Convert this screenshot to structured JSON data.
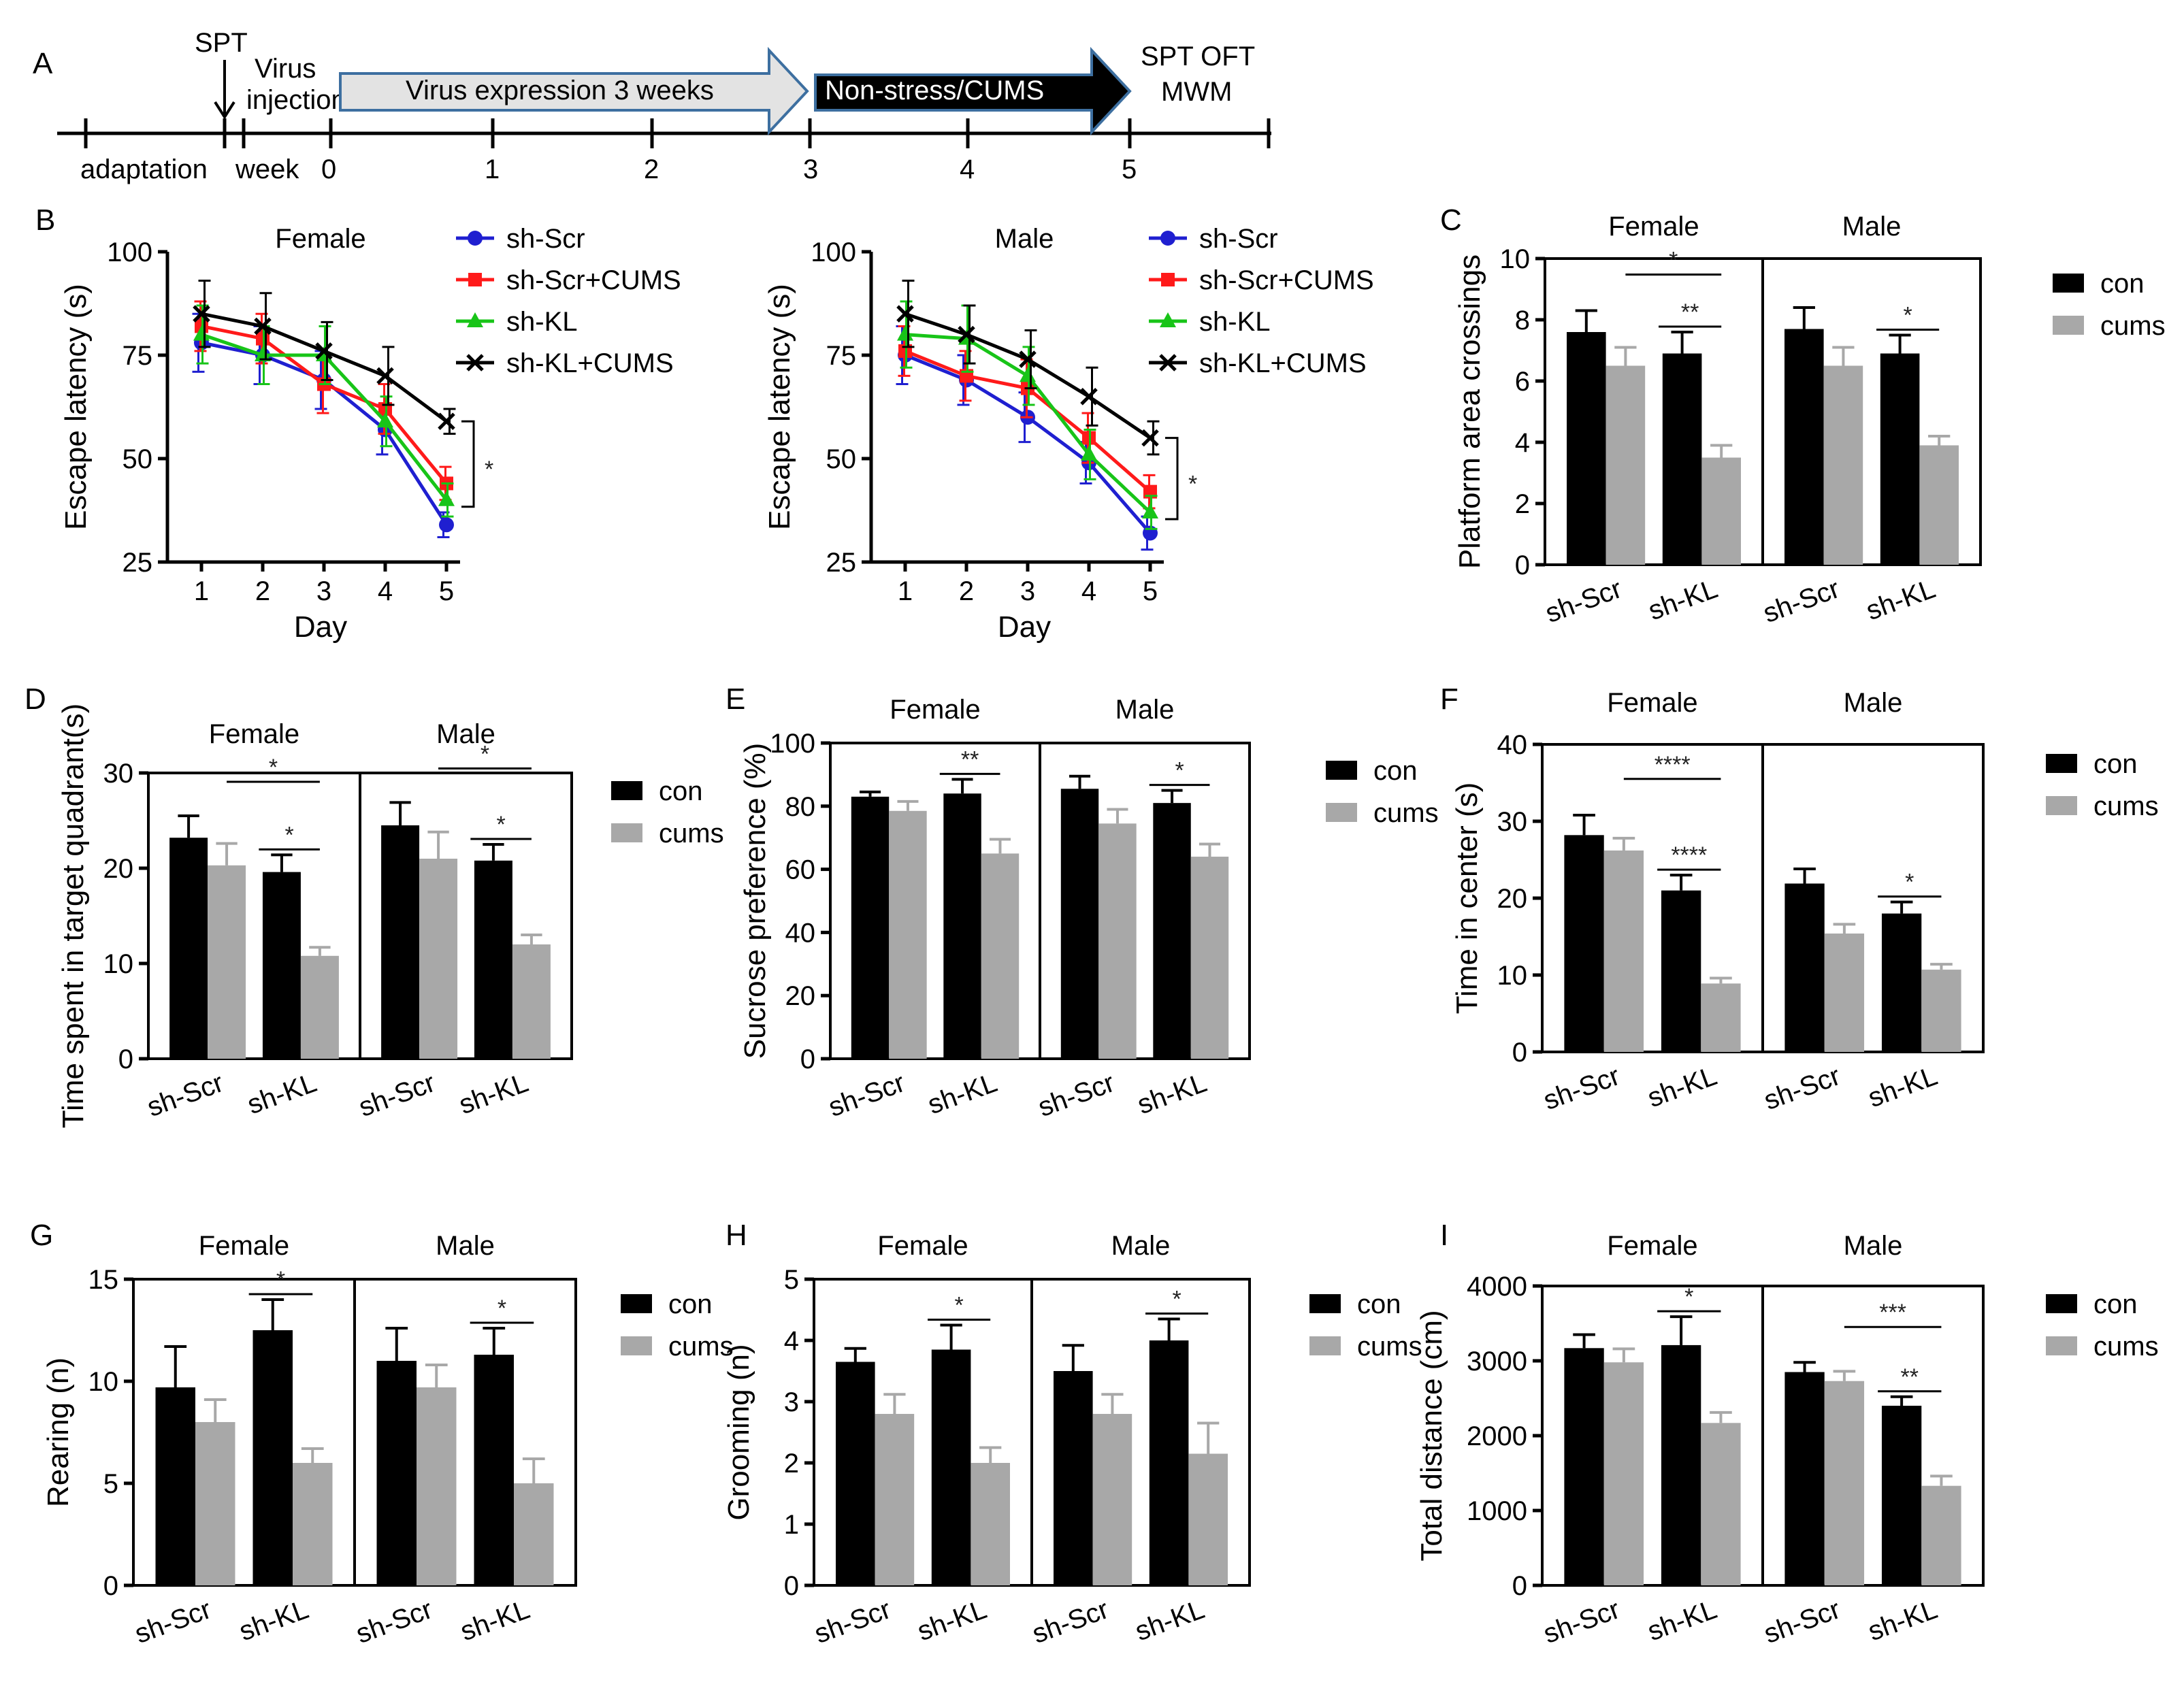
{
  "timeline": {
    "letter": "A",
    "spt_label": "SPT",
    "virus_injection_label": [
      "Virus",
      "injection"
    ],
    "adaptation_label": "adaptation",
    "week_label": "week",
    "ticks": [
      "0",
      "1",
      "2",
      "3",
      "4",
      "5"
    ],
    "arrow1_label": "Virus expression  3 weeks",
    "arrow2_label": "Non-stress/CUMS",
    "end_label": [
      "SPT OFT",
      "MWM"
    ]
  },
  "colors": {
    "sh_scr": "#1f1fd0",
    "sh_scr_cums": "#ff1a1a",
    "sh_kl": "#18c418",
    "sh_kl_cums": "#000000",
    "con": "#000000",
    "cums": "#a8a8a8"
  },
  "chart_data": [
    {
      "id": "B_female",
      "letter": "B",
      "type": "line",
      "title": "Female",
      "xlabel": "Day",
      "ylabel": "Escape latency (s)",
      "x": [
        1,
        2,
        3,
        4,
        5
      ],
      "x_ticks": [
        "1",
        "2",
        "3",
        "4",
        "5"
      ],
      "ylim": [
        25,
        100
      ],
      "y_ticks": [
        "25",
        "50",
        "75",
        "100"
      ],
      "series": [
        {
          "name": "sh-Scr",
          "values": [
            78,
            75,
            69,
            57,
            34
          ],
          "err": [
            7,
            7,
            7,
            6,
            3
          ]
        },
        {
          "name": "sh-Scr+CUMS",
          "values": [
            82,
            79,
            68,
            62,
            44
          ],
          "err": [
            6,
            6,
            7,
            6,
            4
          ]
        },
        {
          "name": "sh-KL",
          "values": [
            80,
            75,
            75,
            59,
            40
          ],
          "err": [
            7,
            7,
            7,
            6,
            4
          ]
        },
        {
          "name": "sh-KL+CUMS",
          "values": [
            85,
            82,
            76,
            70,
            59
          ],
          "err": [
            8,
            8,
            7,
            7,
            3
          ]
        }
      ],
      "annotation": "*"
    },
    {
      "id": "B_male",
      "type": "line",
      "title": "Male",
      "xlabel": "Day",
      "ylabel": "Escape latency (s)",
      "x": [
        1,
        2,
        3,
        4,
        5
      ],
      "x_ticks": [
        "1",
        "2",
        "3",
        "4",
        "5"
      ],
      "ylim": [
        25,
        100
      ],
      "y_ticks": [
        "25",
        "50",
        "75",
        "100"
      ],
      "series": [
        {
          "name": "sh-Scr",
          "values": [
            75,
            69,
            60,
            49,
            32
          ],
          "err": [
            7,
            6,
            6,
            5,
            4
          ]
        },
        {
          "name": "sh-Scr+CUMS",
          "values": [
            76,
            70,
            67,
            55,
            42
          ],
          "err": [
            6,
            6,
            7,
            6,
            4
          ]
        },
        {
          "name": "sh-KL",
          "values": [
            80,
            79,
            70,
            51,
            37
          ],
          "err": [
            8,
            8,
            7,
            6,
            4
          ]
        },
        {
          "name": "sh-KL+CUMS",
          "values": [
            85,
            80,
            74,
            65,
            55
          ],
          "err": [
            8,
            7,
            7,
            7,
            4
          ]
        }
      ],
      "annotation": "*"
    },
    {
      "id": "C",
      "letter": "C",
      "type": "bar",
      "ylabel": "Platform area crossings",
      "ylim": [
        0,
        10
      ],
      "y_ticks": [
        "0",
        "2",
        "4",
        "6",
        "8",
        "10"
      ],
      "groups": [
        "Female",
        "Male"
      ],
      "categories": [
        "sh-Scr",
        "sh-KL",
        "sh-Scr",
        "sh-KL"
      ],
      "series": [
        {
          "name": "con",
          "values": [
            7.6,
            6.9,
            7.7,
            6.9
          ],
          "err": [
            0.7,
            0.7,
            0.7,
            0.6
          ]
        },
        {
          "name": "cums",
          "values": [
            6.5,
            3.5,
            6.5,
            3.9
          ],
          "err": [
            0.6,
            0.4,
            0.6,
            0.3
          ]
        }
      ],
      "sig": [
        {
          "from": [
            0,
            1
          ],
          "to": [
            1,
            1
          ],
          "label": "*",
          "level": 1
        },
        {
          "from": [
            1,
            0
          ],
          "to": [
            1,
            1
          ],
          "label": "**",
          "level": 0
        },
        {
          "from": [
            3,
            0
          ],
          "to": [
            3,
            1
          ],
          "label": "*",
          "level": 0
        }
      ]
    },
    {
      "id": "D",
      "letter": "D",
      "type": "bar",
      "ylabel": "Time spent in target quadrant(s)",
      "ylim": [
        0,
        30
      ],
      "y_ticks": [
        "0",
        "10",
        "20",
        "30"
      ],
      "groups": [
        "Female",
        "Male"
      ],
      "categories": [
        "sh-Scr",
        "sh-KL",
        "sh-Scr",
        "sh-KL"
      ],
      "series": [
        {
          "name": "con",
          "values": [
            23.2,
            19.6,
            24.5,
            20.8
          ],
          "err": [
            2.3,
            1.8,
            2.4,
            1.7
          ]
        },
        {
          "name": "cums",
          "values": [
            20.3,
            10.8,
            21.0,
            12.0
          ],
          "err": [
            2.3,
            0.9,
            2.8,
            1.0
          ]
        }
      ],
      "sig": [
        {
          "from": [
            0,
            1
          ],
          "to": [
            1,
            1
          ],
          "label": "*",
          "level": 1
        },
        {
          "from": [
            1,
            0
          ],
          "to": [
            1,
            1
          ],
          "label": "*",
          "level": 0
        },
        {
          "from": [
            2,
            1
          ],
          "to": [
            3,
            1
          ],
          "label": "*",
          "level": 1
        },
        {
          "from": [
            3,
            0
          ],
          "to": [
            3,
            1
          ],
          "label": "*",
          "level": 0
        }
      ]
    },
    {
      "id": "E",
      "letter": "E",
      "type": "bar",
      "ylabel": "Sucrose preference (%)",
      "ylim": [
        0,
        100
      ],
      "y_ticks": [
        "0",
        "20",
        "40",
        "60",
        "80",
        "100"
      ],
      "groups": [
        "Female",
        "Male"
      ],
      "categories": [
        "sh-Scr",
        "sh-KL",
        "sh-Scr",
        "sh-KL"
      ],
      "series": [
        {
          "name": "con",
          "values": [
            83,
            84,
            85.5,
            81
          ],
          "err": [
            1.5,
            4.5,
            4,
            4
          ]
        },
        {
          "name": "cums",
          "values": [
            78.5,
            65,
            74.5,
            64
          ],
          "err": [
            3,
            4.5,
            4.5,
            4
          ]
        }
      ],
      "sig": [
        {
          "from": [
            1,
            0
          ],
          "to": [
            1,
            1
          ],
          "label": "**",
          "level": 0
        },
        {
          "from": [
            3,
            0
          ],
          "to": [
            3,
            1
          ],
          "label": "*",
          "level": 0
        }
      ]
    },
    {
      "id": "F",
      "letter": "F",
      "type": "bar",
      "ylabel": "Time in center (s)",
      "ylim": [
        0,
        40
      ],
      "y_ticks": [
        "0",
        "10",
        "20",
        "30",
        "40"
      ],
      "groups": [
        "Female",
        "Male"
      ],
      "categories": [
        "sh-Scr",
        "sh-KL",
        "sh-Scr",
        "sh-KL"
      ],
      "series": [
        {
          "name": "con",
          "values": [
            28.2,
            21.0,
            21.9,
            18.0
          ],
          "err": [
            2.6,
            2.0,
            1.9,
            1.5
          ]
        },
        {
          "name": "cums",
          "values": [
            26.2,
            8.9,
            15.4,
            10.7
          ],
          "err": [
            1.6,
            0.7,
            1.2,
            0.7
          ]
        }
      ],
      "sig": [
        {
          "from": [
            0,
            1
          ],
          "to": [
            1,
            1
          ],
          "label": "****",
          "level": 1
        },
        {
          "from": [
            1,
            0
          ],
          "to": [
            1,
            1
          ],
          "label": "****",
          "level": 0
        },
        {
          "from": [
            3,
            0
          ],
          "to": [
            3,
            1
          ],
          "label": "*",
          "level": 0
        }
      ]
    },
    {
      "id": "G",
      "letter": "G",
      "type": "bar",
      "ylabel": "Rearing (n)",
      "ylim": [
        0,
        15
      ],
      "y_ticks": [
        "0",
        "5",
        "10",
        "15"
      ],
      "groups": [
        "Female",
        "Male"
      ],
      "categories": [
        "sh-Scr",
        "sh-KL",
        "sh-Scr",
        "sh-KL"
      ],
      "series": [
        {
          "name": "con",
          "values": [
            9.7,
            12.5,
            11.0,
            11.3
          ],
          "err": [
            2.0,
            1.5,
            1.6,
            1.3
          ]
        },
        {
          "name": "cums",
          "values": [
            8.0,
            6.0,
            9.7,
            5.0
          ],
          "err": [
            1.1,
            0.7,
            1.1,
            1.2
          ]
        }
      ],
      "sig": [
        {
          "from": [
            1,
            0
          ],
          "to": [
            1,
            1
          ],
          "label": "*",
          "level": 0
        },
        {
          "from": [
            3,
            0
          ],
          "to": [
            3,
            1
          ],
          "label": "*",
          "level": 0
        }
      ]
    },
    {
      "id": "H",
      "letter": "H",
      "type": "bar",
      "ylabel": "Grooming (n)",
      "ylim": [
        0,
        5
      ],
      "y_ticks": [
        "0",
        "1",
        "2",
        "3",
        "4",
        "5"
      ],
      "groups": [
        "Female",
        "Male"
      ],
      "categories": [
        "sh-Scr",
        "sh-KL",
        "sh-Scr",
        "sh-KL"
      ],
      "series": [
        {
          "name": "con",
          "values": [
            3.65,
            3.85,
            3.5,
            4.0
          ],
          "err": [
            0.22,
            0.4,
            0.42,
            0.35
          ]
        },
        {
          "name": "cums",
          "values": [
            2.8,
            2.0,
            2.8,
            2.15
          ],
          "err": [
            0.32,
            0.25,
            0.32,
            0.5
          ]
        }
      ],
      "sig": [
        {
          "from": [
            1,
            0
          ],
          "to": [
            1,
            1
          ],
          "label": "*",
          "level": 0
        },
        {
          "from": [
            3,
            0
          ],
          "to": [
            3,
            1
          ],
          "label": "*",
          "level": 0
        }
      ]
    },
    {
      "id": "I",
      "letter": "I",
      "type": "bar",
      "ylabel": "Total distance (cm)",
      "ylim": [
        0,
        4000
      ],
      "y_ticks": [
        "0",
        "1000",
        "2000",
        "3000",
        "4000"
      ],
      "groups": [
        "Female",
        "Male"
      ],
      "categories": [
        "sh-Scr",
        "sh-KL",
        "sh-Scr",
        "sh-KL"
      ],
      "series": [
        {
          "name": "con",
          "values": [
            3170,
            3210,
            2850,
            2400
          ],
          "err": [
            180,
            380,
            130,
            120
          ]
        },
        {
          "name": "cums",
          "values": [
            2980,
            2170,
            2730,
            1330
          ],
          "err": [
            180,
            140,
            130,
            130
          ]
        }
      ],
      "sig": [
        {
          "from": [
            1,
            0
          ],
          "to": [
            1,
            1
          ],
          "label": "*",
          "level": 0
        },
        {
          "from": [
            2,
            1
          ],
          "to": [
            3,
            1
          ],
          "label": "***",
          "level": 1
        },
        {
          "from": [
            3,
            0
          ],
          "to": [
            3,
            1
          ],
          "label": "**",
          "level": 0
        }
      ]
    }
  ]
}
